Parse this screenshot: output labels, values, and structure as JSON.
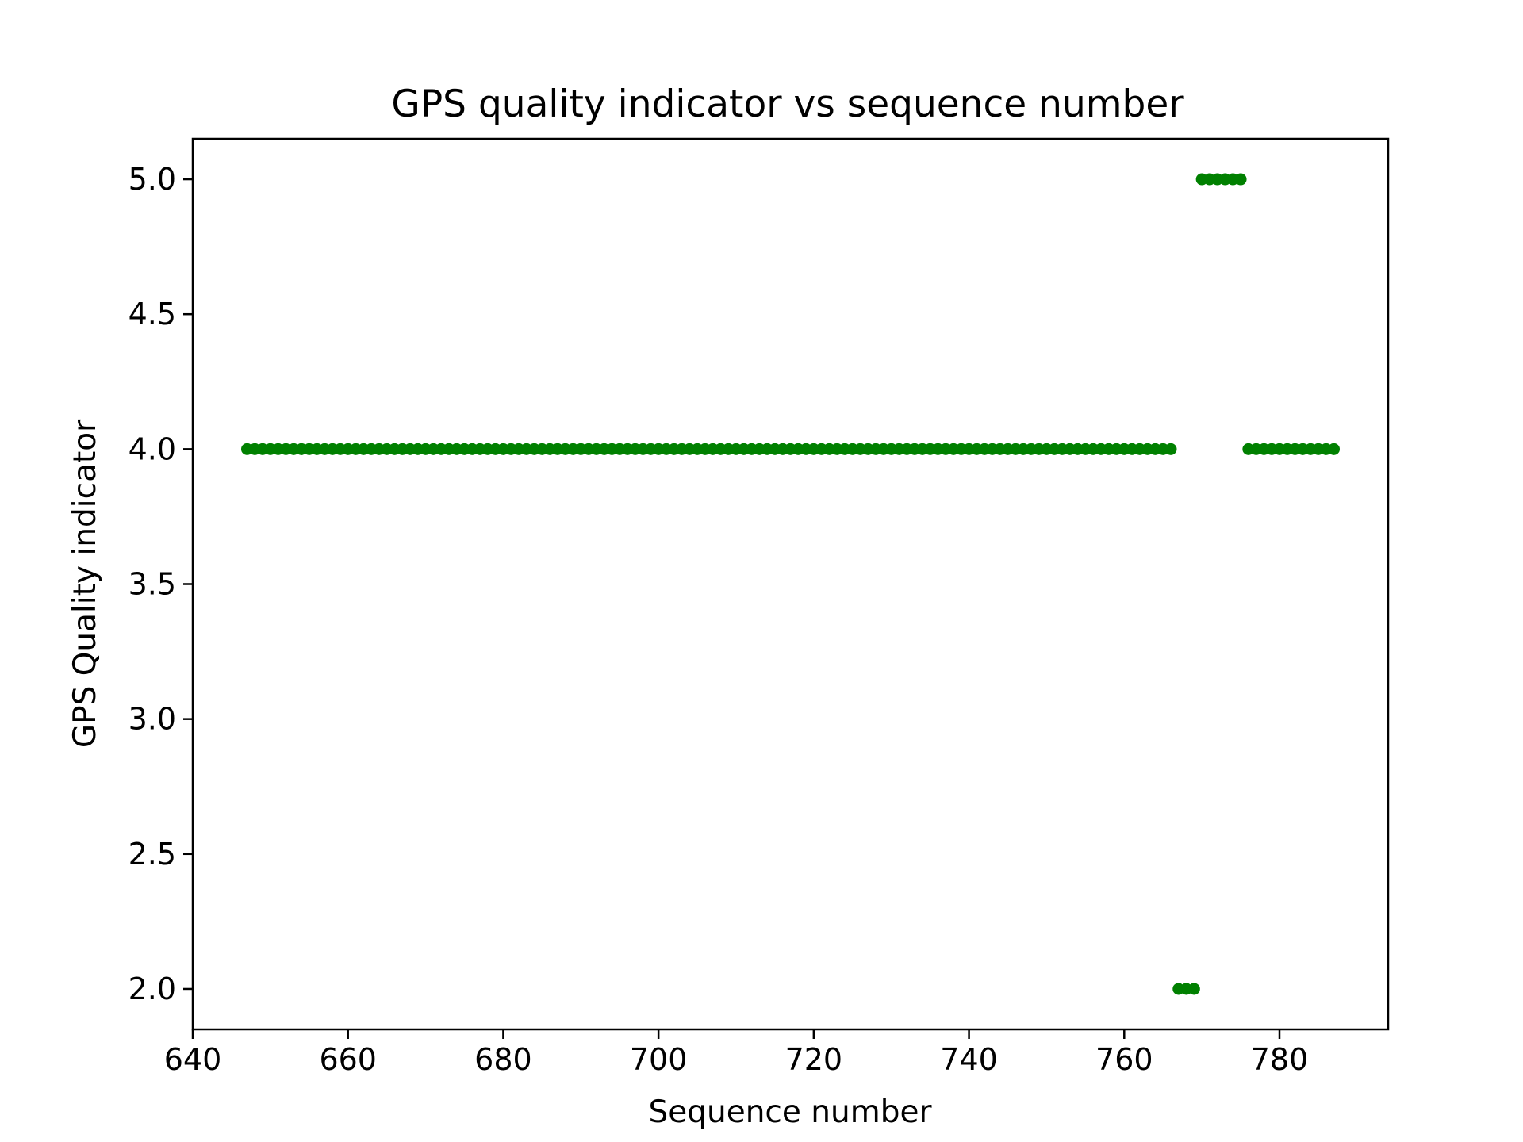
{
  "chart_data": {
    "type": "scatter",
    "title": "GPS quality indicator vs sequence number",
    "xlabel": "Sequence number",
    "ylabel": "GPS Quality indicator",
    "xlim": [
      640,
      794
    ],
    "ylim": [
      1.85,
      5.15
    ],
    "xticks": [
      640,
      660,
      680,
      700,
      720,
      740,
      760,
      780
    ],
    "yticks": [
      2.0,
      2.5,
      3.0,
      3.5,
      4.0,
      4.5,
      5.0
    ],
    "xtick_labels": [
      "640",
      "660",
      "680",
      "700",
      "720",
      "740",
      "760",
      "780"
    ],
    "ytick_labels": [
      "2.0",
      "2.5",
      "3.0",
      "3.5",
      "4.0",
      "4.5",
      "5.0"
    ],
    "grid": false,
    "marker_color": "#008000",
    "series": [
      {
        "segments": [
          {
            "x_start": 647,
            "x_end": 766,
            "y": 4.0
          },
          {
            "x_start": 767,
            "x_end": 769,
            "y": 2.0
          },
          {
            "x_start": 770,
            "x_end": 775,
            "y": 5.0
          },
          {
            "x_start": 776,
            "x_end": 787,
            "y": 4.0
          }
        ]
      }
    ]
  }
}
